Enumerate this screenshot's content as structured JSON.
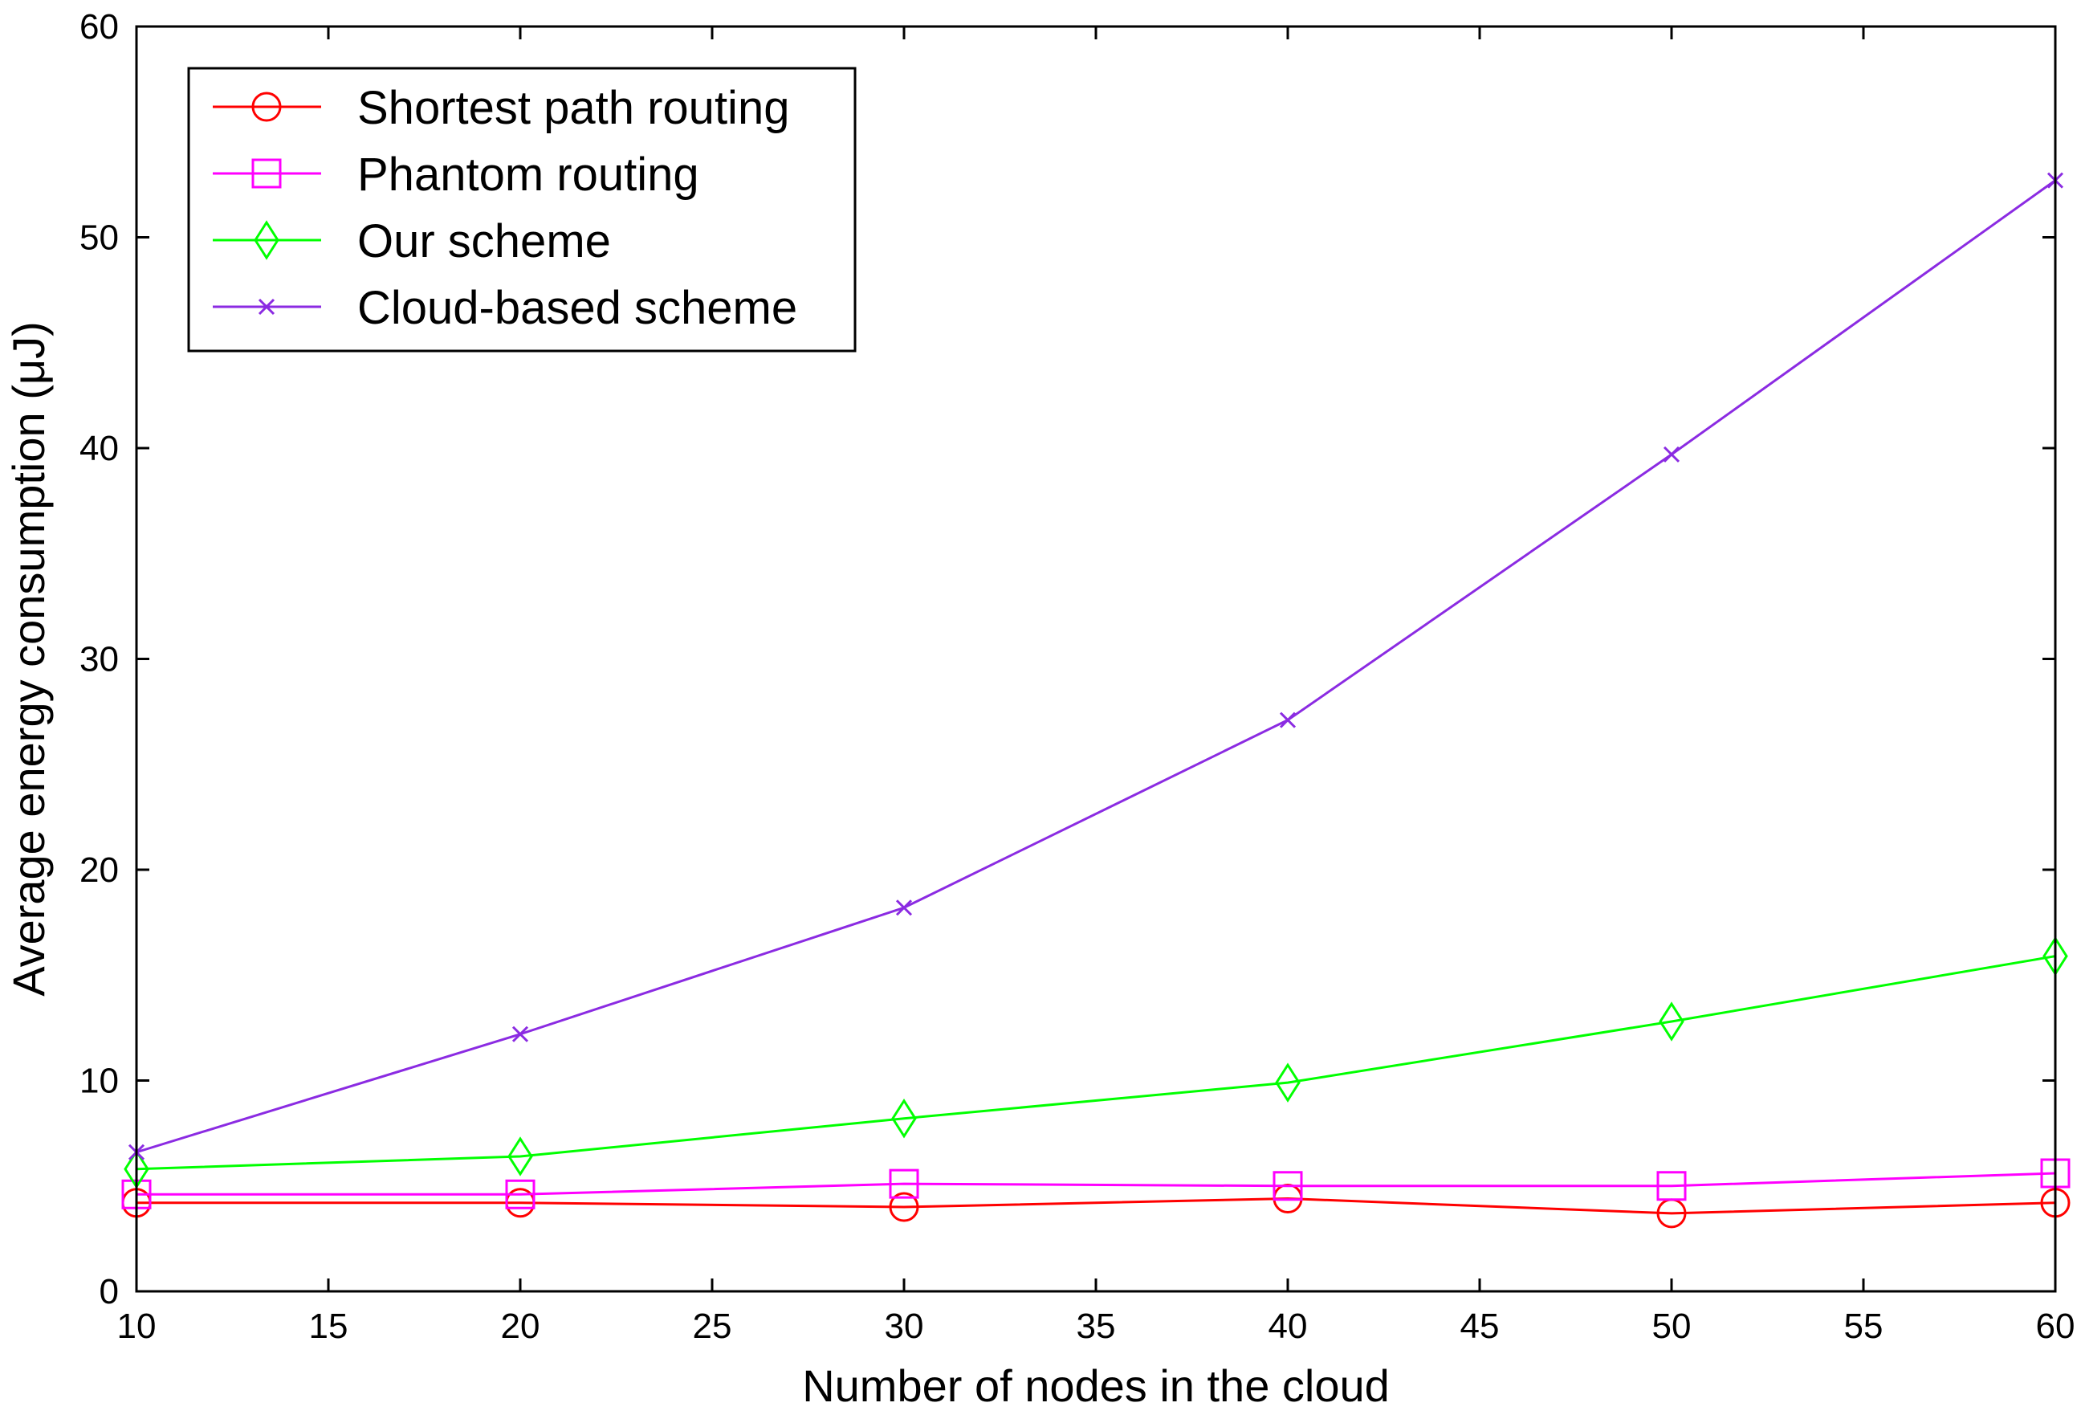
{
  "chart_data": {
    "type": "line",
    "title": "",
    "xlabel": "Number of nodes in the cloud",
    "ylabel": "Average energy consumption (μJ)",
    "xlim": [
      10,
      60
    ],
    "ylim": [
      0,
      60
    ],
    "xticks": [
      10,
      15,
      20,
      25,
      30,
      35,
      40,
      45,
      50,
      55,
      60
    ],
    "yticks": [
      0,
      10,
      20,
      30,
      40,
      50,
      60
    ],
    "grid": false,
    "legend_position": "top-left",
    "x": [
      10,
      20,
      30,
      40,
      50,
      60
    ],
    "series": [
      {
        "name": "Shortest path routing",
        "color": "#ff0000",
        "marker": "circle",
        "values": [
          4.2,
          4.2,
          4.0,
          4.4,
          3.7,
          4.2
        ]
      },
      {
        "name": "Phantom routing",
        "color": "#ff00ff",
        "marker": "square",
        "values": [
          4.6,
          4.6,
          5.1,
          5.0,
          5.0,
          5.6
        ]
      },
      {
        "name": "Our scheme",
        "color": "#00ff00",
        "marker": "diamond",
        "values": [
          5.8,
          6.4,
          8.2,
          9.9,
          12.8,
          15.9
        ]
      },
      {
        "name": "Cloud-based scheme",
        "color": "#8b2be2",
        "marker": "x",
        "values": [
          6.6,
          12.2,
          18.2,
          27.1,
          39.7,
          52.7
        ]
      }
    ]
  }
}
